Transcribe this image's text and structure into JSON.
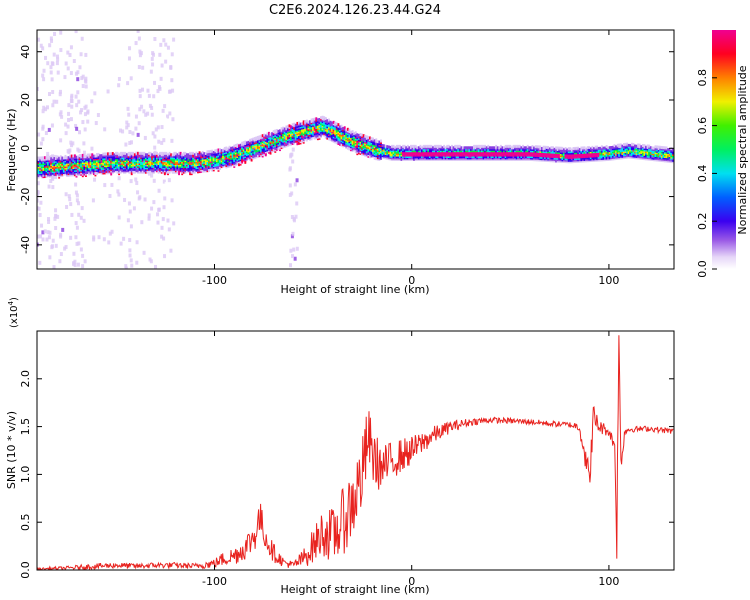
{
  "figure": {
    "title": "C2E6.2024.126.23.44.G24"
  },
  "chart_data": [
    {
      "type": "heatmap",
      "title": "C2E6.2024.126.23.44.G24",
      "xlabel": "Height of straight line (km)",
      "ylabel": "Frequency (Hz)",
      "xlim": [
        -190,
        133
      ],
      "ylim": [
        -50,
        49
      ],
      "x_ticks": [
        -100,
        0,
        100
      ],
      "x_tick_labels": [
        "-100",
        "0",
        "100"
      ],
      "y_ticks": [
        -40,
        -20,
        0,
        20,
        40
      ],
      "y_tick_labels": [
        "-40",
        "-20",
        "0",
        "20",
        "40"
      ],
      "grid": false,
      "colorbar": {
        "label": "Normalized spectral amplitude",
        "range": [
          0,
          1
        ],
        "ticks": [
          0.0,
          0.2,
          0.4,
          0.6,
          0.8
        ],
        "tick_labels": [
          "0.0",
          "0.2",
          "0.4",
          "0.6",
          "0.8"
        ],
        "colormap": [
          "#ffffff",
          "#dcc8f5",
          "#8a3ee0",
          "#2a00f0",
          "#00e8f0",
          "#00f040",
          "#f0f000",
          "#ff7000",
          "#ff0030",
          "#f00090"
        ]
      },
      "ridge": {
        "x": [
          -190,
          -170,
          -150,
          -130,
          -110,
          -100,
          -90,
          -80,
          -70,
          -60,
          -50,
          -45,
          -40,
          -30,
          -20,
          -10,
          0,
          20,
          40,
          60,
          80,
          100,
          110,
          133
        ],
        "frequency": [
          -8,
          -7,
          -6,
          -6,
          -6,
          -5,
          -3,
          0,
          3,
          6,
          8,
          9,
          7,
          3,
          0,
          -2,
          -2,
          -2,
          -2,
          -2,
          -3,
          -2,
          -1,
          -3
        ]
      },
      "sampling_note": ""
    },
    {
      "type": "line",
      "xlabel": "Height of straight line (km)",
      "ylabel": "SNR (10 * v/v)",
      "y_multiplier": "(x10",
      "y_multiplier_exp": "4",
      "xlim": [
        -190,
        133
      ],
      "ylim": [
        0,
        2.5
      ],
      "x_ticks": [
        -100,
        0,
        100
      ],
      "x_tick_labels": [
        "-100",
        "0",
        "100"
      ],
      "y_ticks": [
        0.0,
        0.5,
        1.0,
        1.5,
        2.0
      ],
      "y_tick_labels": [
        "0.0",
        "0.5",
        "1.0",
        "1.5",
        "2.0"
      ],
      "grid": false,
      "series": [
        {
          "color": "#e8231f",
          "x": [
            -190,
            -175,
            -160,
            -150,
            -140,
            -130,
            -120,
            -110,
            -100,
            -95,
            -90,
            -85,
            -80,
            -77,
            -75,
            -72,
            -70,
            -65,
            -60,
            -55,
            -50,
            -45,
            -40,
            -35,
            -30,
            -25,
            -22,
            -20,
            -15,
            -10,
            -5,
            0,
            10,
            20,
            30,
            40,
            50,
            60,
            70,
            80,
            85,
            88,
            90,
            92,
            95,
            100,
            103,
            104,
            105,
            106,
            108,
            110,
            120,
            133
          ],
          "values": [
            0.01,
            0.02,
            0.04,
            0.05,
            0.04,
            0.05,
            0.05,
            0.04,
            0.07,
            0.12,
            0.15,
            0.22,
            0.35,
            0.55,
            0.4,
            0.25,
            0.18,
            0.08,
            0.05,
            0.12,
            0.25,
            0.4,
            0.35,
            0.5,
            0.7,
            1.0,
            1.4,
            1.2,
            1.05,
            1.15,
            1.2,
            1.25,
            1.4,
            1.5,
            1.55,
            1.57,
            1.56,
            1.55,
            1.53,
            1.52,
            1.5,
            1.2,
            0.9,
            1.6,
            1.5,
            1.45,
            1.3,
            0.3,
            2.5,
            1.1,
            1.45,
            1.47,
            1.48,
            1.45
          ],
          "noise_amplitude": [
            0.01,
            0.02,
            0.03,
            0.03,
            0.03,
            0.03,
            0.03,
            0.03,
            0.05,
            0.08,
            0.1,
            0.12,
            0.18,
            0.2,
            0.15,
            0.12,
            0.1,
            0.05,
            0.04,
            0.1,
            0.18,
            0.25,
            0.3,
            0.35,
            0.4,
            0.4,
            0.35,
            0.3,
            0.25,
            0.2,
            0.18,
            0.15,
            0.1,
            0.06,
            0.04,
            0.03,
            0.03,
            0.03,
            0.03,
            0.03,
            0.05,
            0.15,
            0.2,
            0.15,
            0.08,
            0.05,
            0.08,
            0.2,
            0.2,
            0.15,
            0.04,
            0.03,
            0.03,
            0.03
          ]
        }
      ]
    }
  ]
}
